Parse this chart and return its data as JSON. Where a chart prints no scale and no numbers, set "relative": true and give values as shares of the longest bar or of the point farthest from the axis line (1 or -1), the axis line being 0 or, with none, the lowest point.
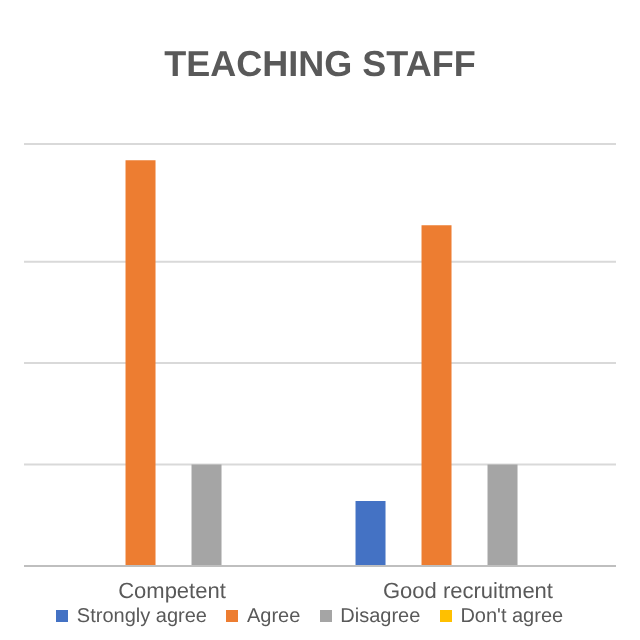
{
  "chart_data": {
    "type": "bar",
    "title": "TEACHING STAFF",
    "relative": true,
    "categories": [
      "Competent",
      "Good recruitment"
    ],
    "series": [
      {
        "name": "Strongly agree",
        "color": "#4472c4",
        "values": [
          null,
          0.16
        ]
      },
      {
        "name": "Agree",
        "color": "#ed7d31",
        "values": [
          1,
          0.84
        ]
      },
      {
        "name": "Disagree",
        "color": "#a5a5a5",
        "values": [
          0.25,
          0.25
        ]
      },
      {
        "name": "Don't agree",
        "color": "#ffc000",
        "values": [
          0,
          null
        ]
      }
    ],
    "grid": "y",
    "legend": "bottom"
  }
}
